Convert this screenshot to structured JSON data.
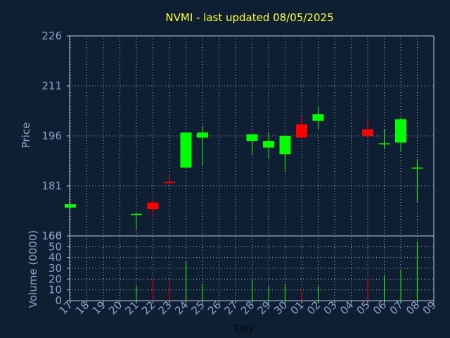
{
  "chart_data": {
    "type": "candlestick",
    "title": "NVMI - last updated 08/05/2025",
    "xlabel": "Day",
    "price_ylabel": "Price",
    "volume_ylabel": "Volume (0000)",
    "price_ylim": [
      166,
      226
    ],
    "price_ticks": [
      "226",
      "211",
      "196",
      "181",
      "166"
    ],
    "volume_ylim": [
      0,
      60
    ],
    "volume_ticks": [
      "60",
      "50",
      "40",
      "30",
      "20",
      "10",
      "0"
    ],
    "x_labels": [
      "17",
      "18",
      "19",
      "20",
      "21",
      "22",
      "23",
      "24",
      "25",
      "26",
      "27",
      "28",
      "29",
      "30",
      "01",
      "02",
      "03",
      "04",
      "05",
      "06",
      "07",
      "08",
      "09"
    ],
    "grid": true,
    "up_color": "#00ff00",
    "down_color": "#ff0000",
    "candles": [
      {
        "i": 0,
        "open": 174.5,
        "close": 175.5,
        "high": 175.5,
        "low": 174.5,
        "volume": 0
      },
      {
        "i": 4,
        "open": 172.3,
        "close": 172.6,
        "high": 173.0,
        "low": 168.0,
        "volume": 14
      },
      {
        "i": 5,
        "open": 176.0,
        "close": 174.0,
        "high": 177.0,
        "low": 171.5,
        "volume": 21
      },
      {
        "i": 6,
        "open": 182.2,
        "close": 181.8,
        "high": 184.5,
        "low": 181.5,
        "volume": 18
      },
      {
        "i": 7,
        "open": 186.5,
        "close": 197.0,
        "high": 197.0,
        "low": 186.5,
        "volume": 36
      },
      {
        "i": 8,
        "open": 195.5,
        "close": 197.0,
        "high": 199.0,
        "low": 187.0,
        "volume": 15
      },
      {
        "i": 11,
        "open": 194.5,
        "close": 196.5,
        "high": 196.5,
        "low": 190.5,
        "volume": 19
      },
      {
        "i": 12,
        "open": 192.5,
        "close": 194.5,
        "high": 197.0,
        "low": 189.0,
        "volume": 14
      },
      {
        "i": 13,
        "open": 190.5,
        "close": 196.0,
        "high": 196.0,
        "low": 185.5,
        "volume": 15
      },
      {
        "i": 14,
        "open": 199.5,
        "close": 195.5,
        "high": 202.0,
        "low": 195.5,
        "volume": 11
      },
      {
        "i": 15,
        "open": 200.5,
        "close": 202.5,
        "high": 205.0,
        "low": 198.0,
        "volume": 14
      },
      {
        "i": 18,
        "open": 198.0,
        "close": 196.0,
        "high": 201.0,
        "low": 195.5,
        "volume": 21
      },
      {
        "i": 19,
        "open": 193.5,
        "close": 193.8,
        "high": 198.0,
        "low": 192.0,
        "volume": 24
      },
      {
        "i": 20,
        "open": 194.0,
        "close": 201.0,
        "high": 201.5,
        "low": 191.5,
        "volume": 29
      },
      {
        "i": 21,
        "open": 186.2,
        "close": 186.5,
        "high": 189.0,
        "low": 176.0,
        "volume": 55
      }
    ]
  }
}
